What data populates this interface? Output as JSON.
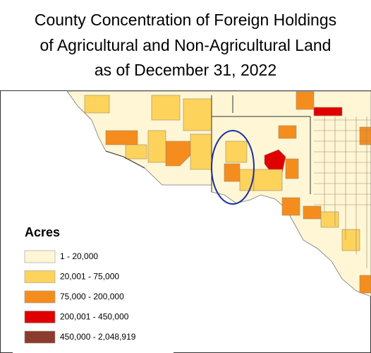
{
  "title": [
    "County Concentration of Foreign Holdings",
    "of Agricultural and Non-Agricultural Land",
    "as of December 31, 2022"
  ],
  "legend": {
    "title": "Acres",
    "items": [
      {
        "label": "1 - 20,000",
        "color": "#fff6d5"
      },
      {
        "label": "20,001 - 75,000",
        "color": "#fdd35c"
      },
      {
        "label": "75,000 - 200,000",
        "color": "#f58d1e"
      },
      {
        "label": "200,001 - 450,000",
        "color": "#e00000"
      },
      {
        "label": "450,000 - 2,048,919",
        "color": "#8c3b2e"
      }
    ]
  }
}
